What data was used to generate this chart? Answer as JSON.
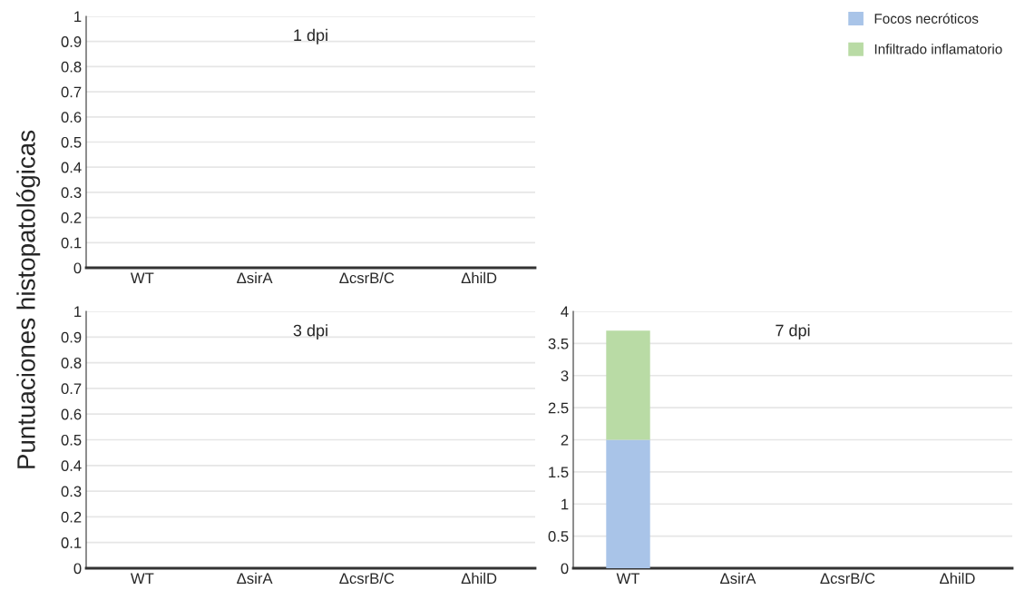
{
  "chart_data": [
    {
      "type": "bar",
      "title": "1 dpi",
      "ylabel": "Puntuaciones histopatológicas",
      "categories": [
        "WT",
        "ΔsirA",
        "ΔcsrB/C",
        "ΔhilD"
      ],
      "stacked": true,
      "series": [
        {
          "color": "#a9c4e8",
          "values": [
            0,
            0,
            0,
            0
          ]
        },
        {
          "color": "#b9dba5",
          "values": [
            0,
            0,
            0,
            0
          ]
        }
      ],
      "ylim": [
        0,
        1
      ],
      "yticks": [
        0,
        0.1,
        0.2,
        0.3,
        0.4,
        0.5,
        0.6,
        0.7,
        0.8,
        0.9,
        1
      ],
      "grid": "y"
    },
    {
      "type": "bar",
      "title": "3 dpi",
      "categories": [
        "WT",
        "ΔsirA",
        "ΔcsrB/C",
        "ΔhilD"
      ],
      "stacked": true,
      "series": [
        {
          "color": "#a9c4e8",
          "values": [
            0,
            0,
            0,
            0
          ]
        },
        {
          "color": "#b9dba5",
          "values": [
            0,
            0,
            0,
            0
          ]
        }
      ],
      "ylim": [
        0,
        1
      ],
      "yticks": [
        0,
        0.1,
        0.2,
        0.3,
        0.4,
        0.5,
        0.6,
        0.7,
        0.8,
        0.9,
        1
      ],
      "grid": "y"
    },
    {
      "type": "bar",
      "title": "7 dpi",
      "categories": [
        "WT",
        "ΔsirA",
        "ΔcsrB/C",
        "ΔhilD"
      ],
      "stacked": true,
      "series": [
        {
          "name": "Focos necróticos",
          "color": "#a9c4e8",
          "values": [
            2,
            0,
            0,
            0
          ]
        },
        {
          "name": "Infiltrado inflamatorio",
          "color": "#b9dba5",
          "values": [
            1.7,
            0,
            0,
            0
          ]
        }
      ],
      "ylim": [
        0,
        4
      ],
      "yticks": [
        0,
        0.5,
        1,
        1.5,
        2,
        2.5,
        3,
        3.5,
        4
      ],
      "grid": "y",
      "legend": "top right"
    }
  ]
}
